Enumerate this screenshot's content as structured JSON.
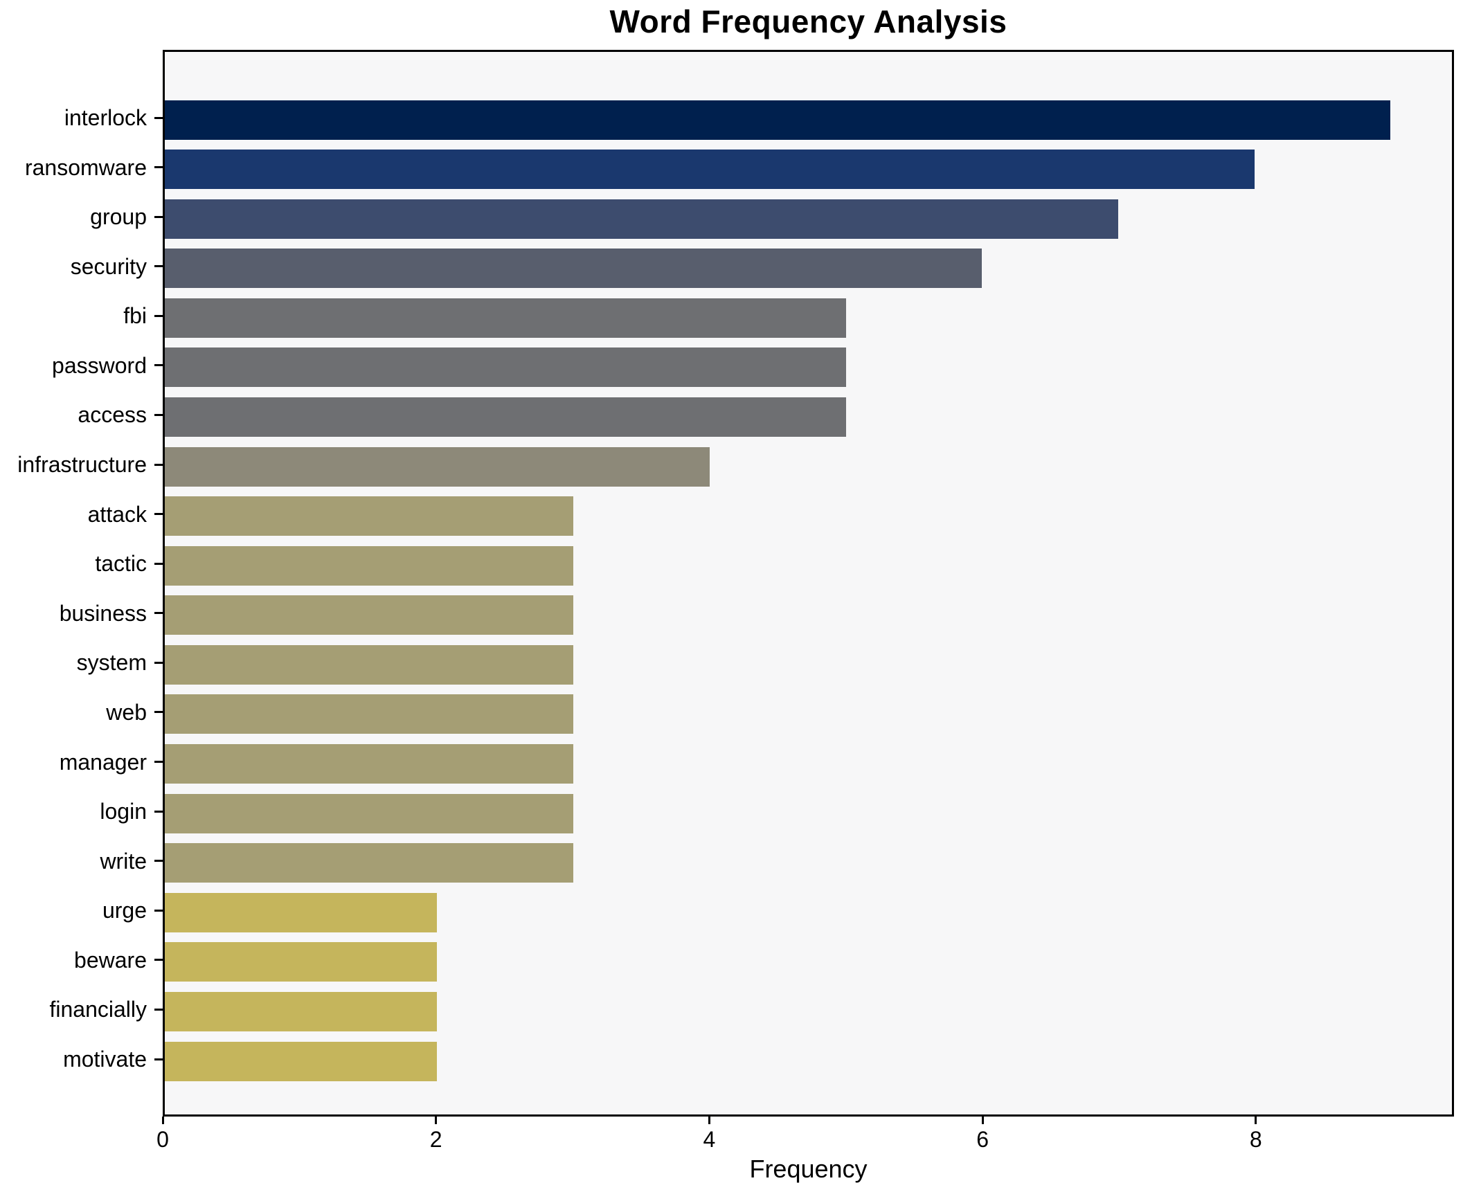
{
  "chart_data": {
    "type": "bar",
    "orientation": "horizontal",
    "title": "Word Frequency Analysis",
    "xlabel": "Frequency",
    "ylabel": "",
    "xlim": [
      0,
      9.45
    ],
    "xticks": [
      0,
      2,
      4,
      6,
      8
    ],
    "grid": false,
    "legend": false,
    "plot_background": "#f7f7f8",
    "spine_color": "#000000",
    "categories": [
      "interlock",
      "ransomware",
      "group",
      "security",
      "fbi",
      "password",
      "access",
      "infrastructure",
      "attack",
      "tactic",
      "business",
      "system",
      "web",
      "manager",
      "login",
      "write",
      "urge",
      "beware",
      "financially",
      "motivate"
    ],
    "values": [
      9,
      8,
      7,
      6,
      5,
      5,
      5,
      4,
      3,
      3,
      3,
      3,
      3,
      3,
      3,
      3,
      2,
      2,
      2,
      2
    ],
    "bar_colors": [
      "#00204e",
      "#1a386e",
      "#3d4c6e",
      "#585e6d",
      "#6e6f72",
      "#6e6f72",
      "#6e6f72",
      "#8d8979",
      "#a59e74",
      "#a59e74",
      "#a59e74",
      "#a59e74",
      "#a59e74",
      "#a59e74",
      "#a59e74",
      "#a59e74",
      "#c5b55c",
      "#c5b55c",
      "#c5b55c",
      "#c5b55c"
    ]
  }
}
